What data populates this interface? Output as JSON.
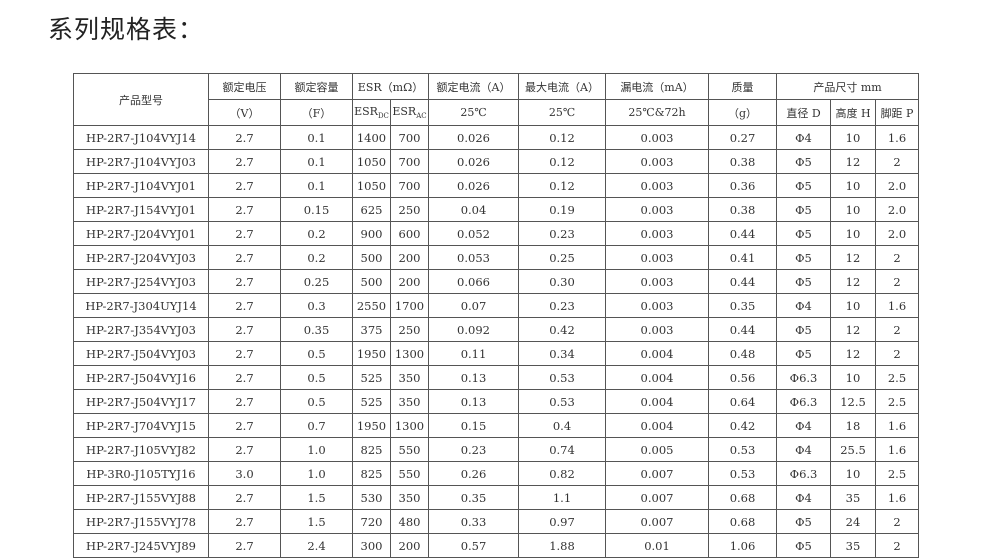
{
  "title": "系列规格表：",
  "header": {
    "model": "产品型号",
    "voltage": [
      "额定电压",
      "（V）"
    ],
    "capacity": [
      "额定容量",
      "（F）"
    ],
    "esr": "ESR（mΩ）",
    "esr_dc": {
      "base": "ESR",
      "sub": "DC"
    },
    "esr_ac": {
      "base": "ESR",
      "sub": "AC"
    },
    "rated_current": [
      "额定电流（A）",
      "25℃"
    ],
    "max_current": [
      "最大电流（A）",
      "25℃"
    ],
    "leakage": [
      "漏电流（mA）",
      "25℃&72h"
    ],
    "mass": [
      "质量",
      "（g）"
    ],
    "size": "产品尺寸 mm",
    "diameter": "直径 D",
    "height": "高度 H",
    "pitch": "脚距 P"
  },
  "rows": [
    [
      "HP-2R7-J104VYJ14",
      "2.7",
      "0.1",
      "1400",
      "700",
      "0.026",
      "0.12",
      "0.003",
      "0.27",
      "Φ4",
      "10",
      "1.6"
    ],
    [
      "HP-2R7-J104VYJ03",
      "2.7",
      "0.1",
      "1050",
      "700",
      "0.026",
      "0.12",
      "0.003",
      "0.38",
      "Φ5",
      "12",
      "2"
    ],
    [
      "HP-2R7-J104VYJ01",
      "2.7",
      "0.1",
      "1050",
      "700",
      "0.026",
      "0.12",
      "0.003",
      "0.36",
      "Φ5",
      "10",
      "2.0"
    ],
    [
      "HP-2R7-J154VYJ01",
      "2.7",
      "0.15",
      "625",
      "250",
      "0.04",
      "0.19",
      "0.003",
      "0.38",
      "Φ5",
      "10",
      "2.0"
    ],
    [
      "HP-2R7-J204VYJ01",
      "2.7",
      "0.2",
      "900",
      "600",
      "0.052",
      "0.23",
      "0.003",
      "0.44",
      "Φ5",
      "10",
      "2.0"
    ],
    [
      "HP-2R7-J204VYJ03",
      "2.7",
      "0.2",
      "500",
      "200",
      "0.053",
      "0.25",
      "0.003",
      "0.41",
      "Φ5",
      "12",
      "2"
    ],
    [
      "HP-2R7-J254VYJ03",
      "2.7",
      "0.25",
      "500",
      "200",
      "0.066",
      "0.30",
      "0.003",
      "0.44",
      "Φ5",
      "12",
      "2"
    ],
    [
      "HP-2R7-J304UYJ14",
      "2.7",
      "0.3",
      "2550",
      "1700",
      "0.07",
      "0.23",
      "0.003",
      "0.35",
      "Φ4",
      "10",
      "1.6"
    ],
    [
      "HP-2R7-J354VYJ03",
      "2.7",
      "0.35",
      "375",
      "250",
      "0.092",
      "0.42",
      "0.003",
      "0.44",
      "Φ5",
      "12",
      "2"
    ],
    [
      "HP-2R7-J504VYJ03",
      "2.7",
      "0.5",
      "1950",
      "1300",
      "0.11",
      "0.34",
      "0.004",
      "0.48",
      "Φ5",
      "12",
      "2"
    ],
    [
      "HP-2R7-J504VYJ16",
      "2.7",
      "0.5",
      "525",
      "350",
      "0.13",
      "0.53",
      "0.004",
      "0.56",
      "Φ6.3",
      "10",
      "2.5"
    ],
    [
      "HP-2R7-J504VYJ17",
      "2.7",
      "0.5",
      "525",
      "350",
      "0.13",
      "0.53",
      "0.004",
      "0.64",
      "Φ6.3",
      "12.5",
      "2.5"
    ],
    [
      "HP-2R7-J704VYJ15",
      "2.7",
      "0.7",
      "1950",
      "1300",
      "0.15",
      "0.4",
      "0.004",
      "0.42",
      "Φ4",
      "18",
      "1.6"
    ],
    [
      "HP-2R7-J105VYJ82",
      "2.7",
      "1.0",
      "825",
      "550",
      "0.23",
      "0.74",
      "0.005",
      "0.53",
      "Φ4",
      "25.5",
      "1.6"
    ],
    [
      "HP-3R0-J105TYJ16",
      "3.0",
      "1.0",
      "825",
      "550",
      "0.26",
      "0.82",
      "0.007",
      "0.53",
      "Φ6.3",
      "10",
      "2.5"
    ],
    [
      "HP-2R7-J155VYJ88",
      "2.7",
      "1.5",
      "530",
      "350",
      "0.35",
      "1.1",
      "0.007",
      "0.68",
      "Φ4",
      "35",
      "1.6"
    ],
    [
      "HP-2R7-J155VYJ78",
      "2.7",
      "1.5",
      "720",
      "480",
      "0.33",
      "0.97",
      "0.007",
      "0.68",
      "Φ5",
      "24",
      "2"
    ],
    [
      "HP-2R7-J245VYJ89",
      "2.7",
      "2.4",
      "300",
      "200",
      "0.57",
      "1.88",
      "0.01",
      "1.06",
      "Φ5",
      "35",
      "2"
    ]
  ]
}
